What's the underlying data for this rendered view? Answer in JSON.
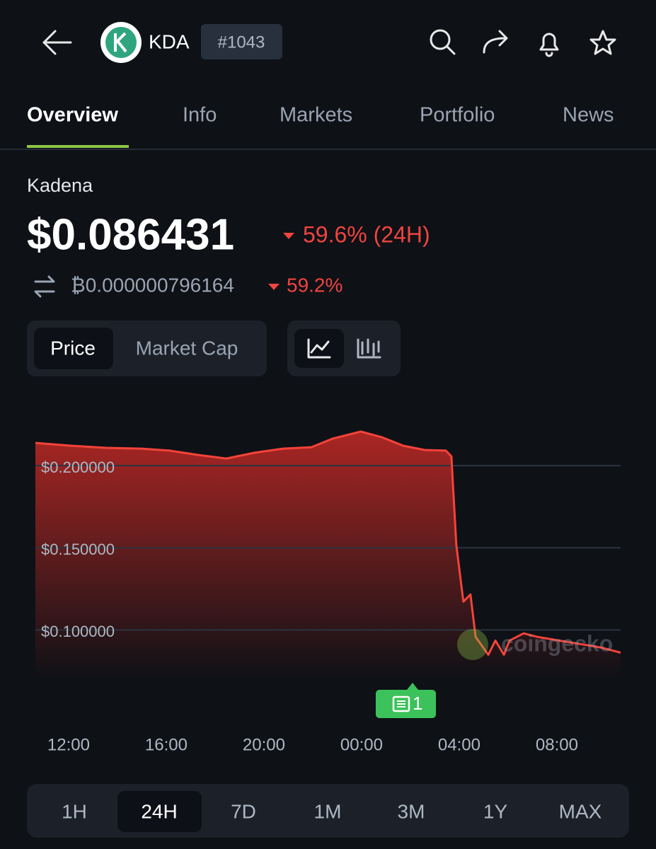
{
  "header": {
    "ticker": "KDA",
    "rank": "#1043"
  },
  "tabs": [
    "Overview",
    "Info",
    "Markets",
    "Portfolio",
    "News"
  ],
  "coin": {
    "name": "Kadena",
    "price": "$0.086431",
    "change": "59.6% (24H)",
    "btc_price": "₿0.000000796164",
    "btc_change": "59.2%"
  },
  "chart_toggle": [
    "Price",
    "Market Cap"
  ],
  "watermark": "coingecko",
  "news_badge": "1",
  "ranges": [
    "1H",
    "24H",
    "7D",
    "1M",
    "3M",
    "1Y",
    "MAX"
  ],
  "chart_data": {
    "type": "line",
    "color": "#f4433a",
    "x": [
      10.64,
      12.09,
      13.54,
      14.99,
      16.14,
      17.3,
      18.46,
      19.62,
      20.78,
      21.94,
      22.81,
      23.97,
      24.84,
      25.71,
      26.58,
      27.45,
      27.68,
      27.88,
      28.17,
      28.46,
      28.67,
      29.19,
      29.48,
      29.83,
      30.06,
      30.64,
      31.22,
      32.09,
      32.96,
      33.83,
      34.61
    ],
    "values": [
      0.2138,
      0.2121,
      0.2108,
      0.2103,
      0.2091,
      0.2065,
      0.2043,
      0.2078,
      0.2103,
      0.2112,
      0.2164,
      0.2207,
      0.2172,
      0.2121,
      0.2095,
      0.2091,
      0.2056,
      0.1517,
      0.1172,
      0.1216,
      0.0957,
      0.0849,
      0.0935,
      0.0849,
      0.0935,
      0.0979,
      0.0957,
      0.0935,
      0.0914,
      0.0892,
      0.0862
    ],
    "xlim": [
      10.64,
      34.61
    ],
    "xticks": [
      {
        "value": 12,
        "label": "12:00"
      },
      {
        "value": 16,
        "label": "16:00"
      },
      {
        "value": 20,
        "label": "20:00"
      },
      {
        "value": 24,
        "label": "00:00"
      },
      {
        "value": 28,
        "label": "04:00"
      },
      {
        "value": 32,
        "label": "08:00"
      }
    ],
    "ylim": [
      0.07,
      0.225
    ],
    "yticks": [
      {
        "value": 0.2,
        "label": "$0.200000"
      },
      {
        "value": 0.15,
        "label": "$0.150000"
      },
      {
        "value": 0.1,
        "label": "$0.100000"
      }
    ],
    "grid": true
  }
}
